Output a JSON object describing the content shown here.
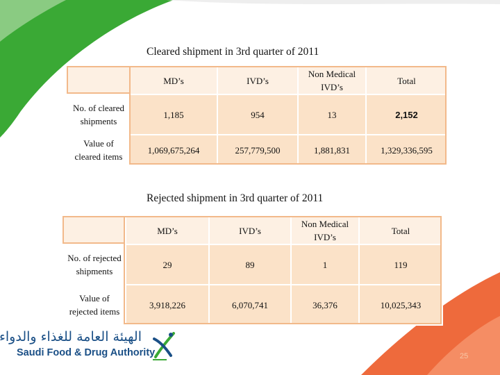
{
  "cleared": {
    "title": "Cleared shipment in 3rd quarter of 2011",
    "headers": [
      "",
      "MD’s",
      "IVD’s",
      "Non Medical IVD’s",
      "Total"
    ],
    "rows": [
      {
        "label": "No. of cleared shipments",
        "md": "1,185",
        "ivd": "954",
        "non_medical": "13",
        "total": "2,152"
      },
      {
        "label": "Value of cleared items",
        "md": "1,069,675,264",
        "ivd": "257,779,500",
        "non_medical": "1,881,831",
        "total": "1,329,336,595"
      }
    ]
  },
  "rejected": {
    "title": "Rejected shipment in 3rd quarter of 2011",
    "headers": [
      "",
      "MD’s",
      "IVD’s",
      "Non Medical IVD’s",
      "Total"
    ],
    "rows": [
      {
        "label": "No. of rejected shipments",
        "md": "29",
        "ivd": "89",
        "non_medical": "1",
        "total": "119"
      },
      {
        "label": "Value of rejected items",
        "md": "3,918,226",
        "ivd": "6,070,741",
        "non_medical": "36,376",
        "total": "10,025,343"
      }
    ]
  },
  "logo": {
    "arabic": "الهيئة العامة للغذاء والدواء",
    "english": "Saudi Food & Drug Authority"
  },
  "page_number": "25",
  "colors": {
    "green": "#3aa935",
    "orange": "#ee6a3c",
    "cell": "#fbe2c8",
    "header_cell": "#fdf0e3",
    "border": "#f2b98a",
    "logo_blue": "#1a4f86"
  }
}
